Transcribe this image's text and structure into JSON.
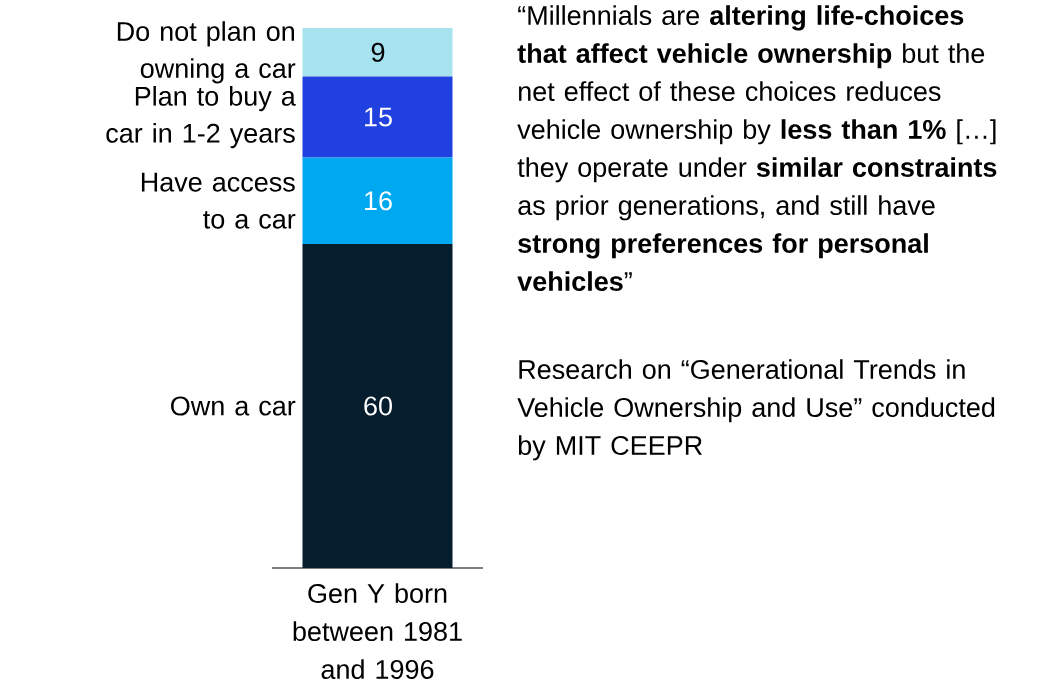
{
  "chart_data": {
    "type": "bar",
    "stacked": true,
    "categories": [
      "Gen Y born between 1981 and 1996"
    ],
    "data_labels": true,
    "series": [
      {
        "name": "Own a car",
        "color": "#061d2e",
        "values": [
          60
        ]
      },
      {
        "name": "Have access to a car",
        "color": "#00a8f0",
        "values": [
          16
        ]
      },
      {
        "name": "Plan to buy a car in 1-2 years",
        "color": "#2040e0",
        "values": [
          15
        ]
      },
      {
        "name": "Do not plan on owning a car",
        "color": "#a6e3ef",
        "values": [
          9
        ]
      }
    ],
    "annotations": [
      "“Millennials are **altering life-choices that affect vehicle ownership** but the net effect of these choices reduces vehicle ownership by **less than 1%** […] they operate under **similar constraints** as prior generations, and still have **strong preferences for personal vehicles**”",
      "Research on “Generational Trends in Vehicle Ownership and Use” conducted by MIT CEEPR"
    ]
  }
}
